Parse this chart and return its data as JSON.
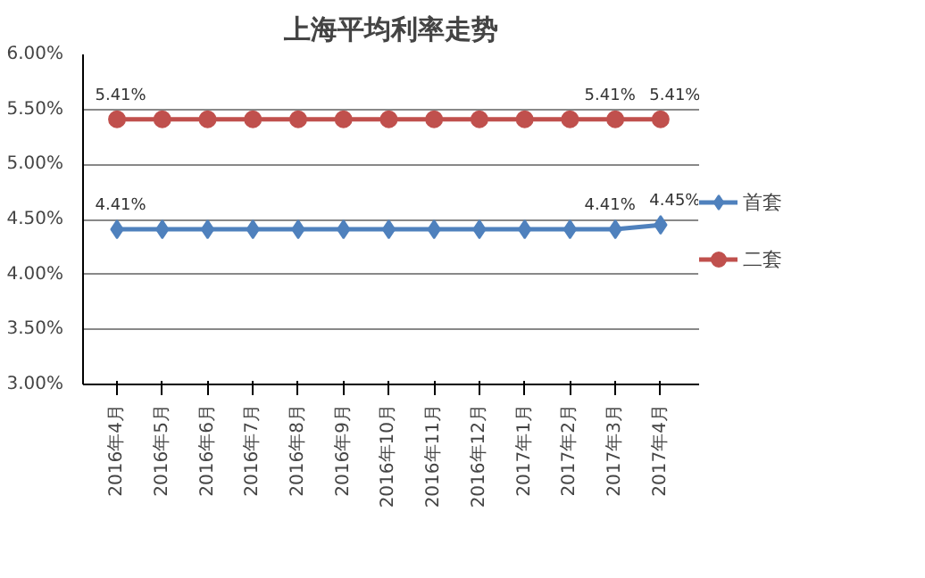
{
  "chart_data": {
    "type": "line",
    "title": "上海平均利率走势",
    "categories": [
      "2016年4月",
      "2016年5月",
      "2016年6月",
      "2016年7月",
      "2016年8月",
      "2016年9月",
      "2016年10月",
      "2016年11月",
      "2016年12月",
      "2017年1月",
      "2017年2月",
      "2017年3月",
      "2017年4月"
    ],
    "series": [
      {
        "name": "首套",
        "color": "#4f81bd",
        "marker": "diamond",
        "values": [
          4.41,
          4.41,
          4.41,
          4.41,
          4.41,
          4.41,
          4.41,
          4.41,
          4.41,
          4.41,
          4.41,
          4.41,
          4.45
        ],
        "value_labels": [
          "4.41%",
          null,
          null,
          null,
          null,
          null,
          null,
          null,
          null,
          null,
          null,
          "4.41%",
          "4.45%"
        ]
      },
      {
        "name": "二套",
        "color": "#c0504d",
        "marker": "circle",
        "values": [
          5.41,
          5.41,
          5.41,
          5.41,
          5.41,
          5.41,
          5.41,
          5.41,
          5.41,
          5.41,
          5.41,
          5.41,
          5.41
        ],
        "value_labels": [
          "5.41%",
          null,
          null,
          null,
          null,
          null,
          null,
          null,
          null,
          null,
          null,
          "5.41%",
          "5.41%"
        ]
      }
    ],
    "ylim": [
      3.0,
      6.0
    ],
    "yticks": [
      {
        "value": 3.0,
        "label": "3.00%"
      },
      {
        "value": 3.5,
        "label": "3.50%"
      },
      {
        "value": 4.0,
        "label": "4.00%"
      },
      {
        "value": 4.5,
        "label": "4.50%"
      },
      {
        "value": 5.0,
        "label": "5.00%"
      },
      {
        "value": 5.5,
        "label": "5.50%"
      },
      {
        "value": 6.0,
        "label": "6.00%"
      }
    ],
    "grid": "y",
    "legend": "right"
  }
}
